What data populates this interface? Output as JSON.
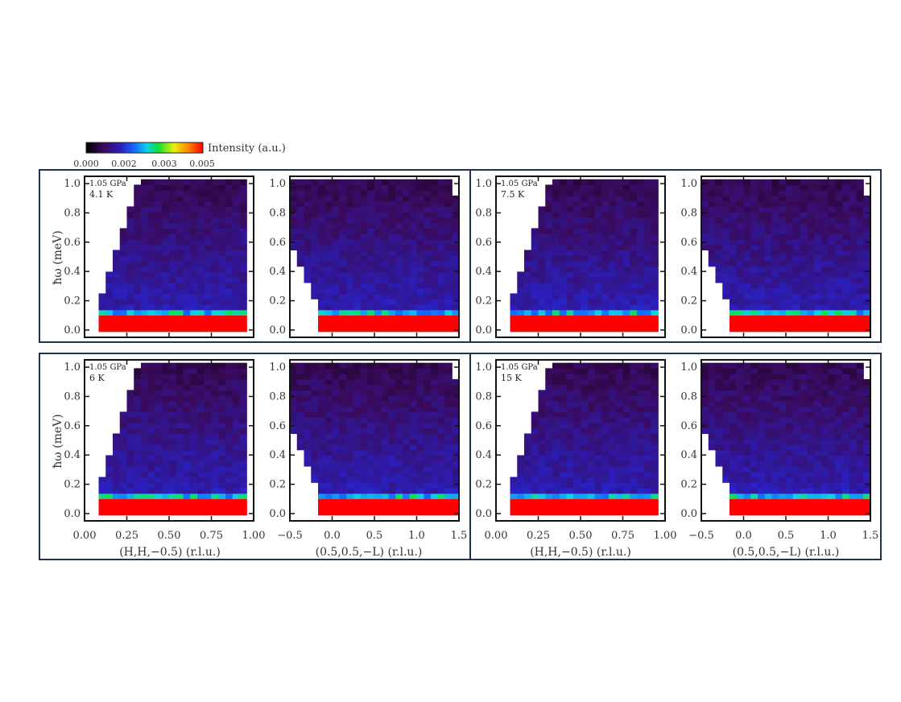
{
  "colorbar": {
    "title": "Intensity (a.u.)",
    "ticks": [
      "0.000",
      "0.002",
      "0.003",
      "0.005"
    ],
    "range": [
      0.0,
      0.005
    ]
  },
  "chart_data": {
    "type": "heatmap",
    "ylabel": "ħω (meV)",
    "y_ticks": [
      "0.0",
      "0.2",
      "0.4",
      "0.6",
      "0.8",
      "1.0"
    ],
    "ylim": [
      -0.05,
      1.05
    ],
    "scans": [
      {
        "name": "HH",
        "xlabel": "(H,H,−0.5) (r.l.u.)",
        "xlim": [
          0.0,
          1.0
        ],
        "x_ticks": [
          "0.00",
          "0.25",
          "0.50",
          "0.75",
          "1.00"
        ],
        "x_tick_values": [
          0.0,
          0.25,
          0.5,
          0.75,
          1.0
        ]
      },
      {
        "name": "L",
        "xlabel": "(0.5,0.5,−L) (r.l.u.)",
        "xlim": [
          -0.5,
          1.5
        ],
        "x_ticks": [
          "−0.5",
          "0.0",
          "0.5",
          "1.0",
          "1.5"
        ],
        "x_tick_values": [
          -0.5,
          0.0,
          0.5,
          1.0,
          1.5
        ]
      }
    ],
    "panel_groups": [
      {
        "pressure": "1.05 GPa",
        "temperature": "4.1 K"
      },
      {
        "pressure": "1.05 GPa",
        "temperature": "7.5 K"
      },
      {
        "pressure": "1.05 GPa",
        "temperature": "6 K"
      },
      {
        "pressure": "1.05 GPa",
        "temperature": "15 K"
      }
    ],
    "intensity_profile": {
      "elastic_band_meV": [
        -0.01,
        0.09
      ],
      "elastic_intensity": 0.005,
      "inelastic_edge_meV": 0.1,
      "edge_intensity": 0.0025,
      "background_intensity": 0.0012
    }
  }
}
